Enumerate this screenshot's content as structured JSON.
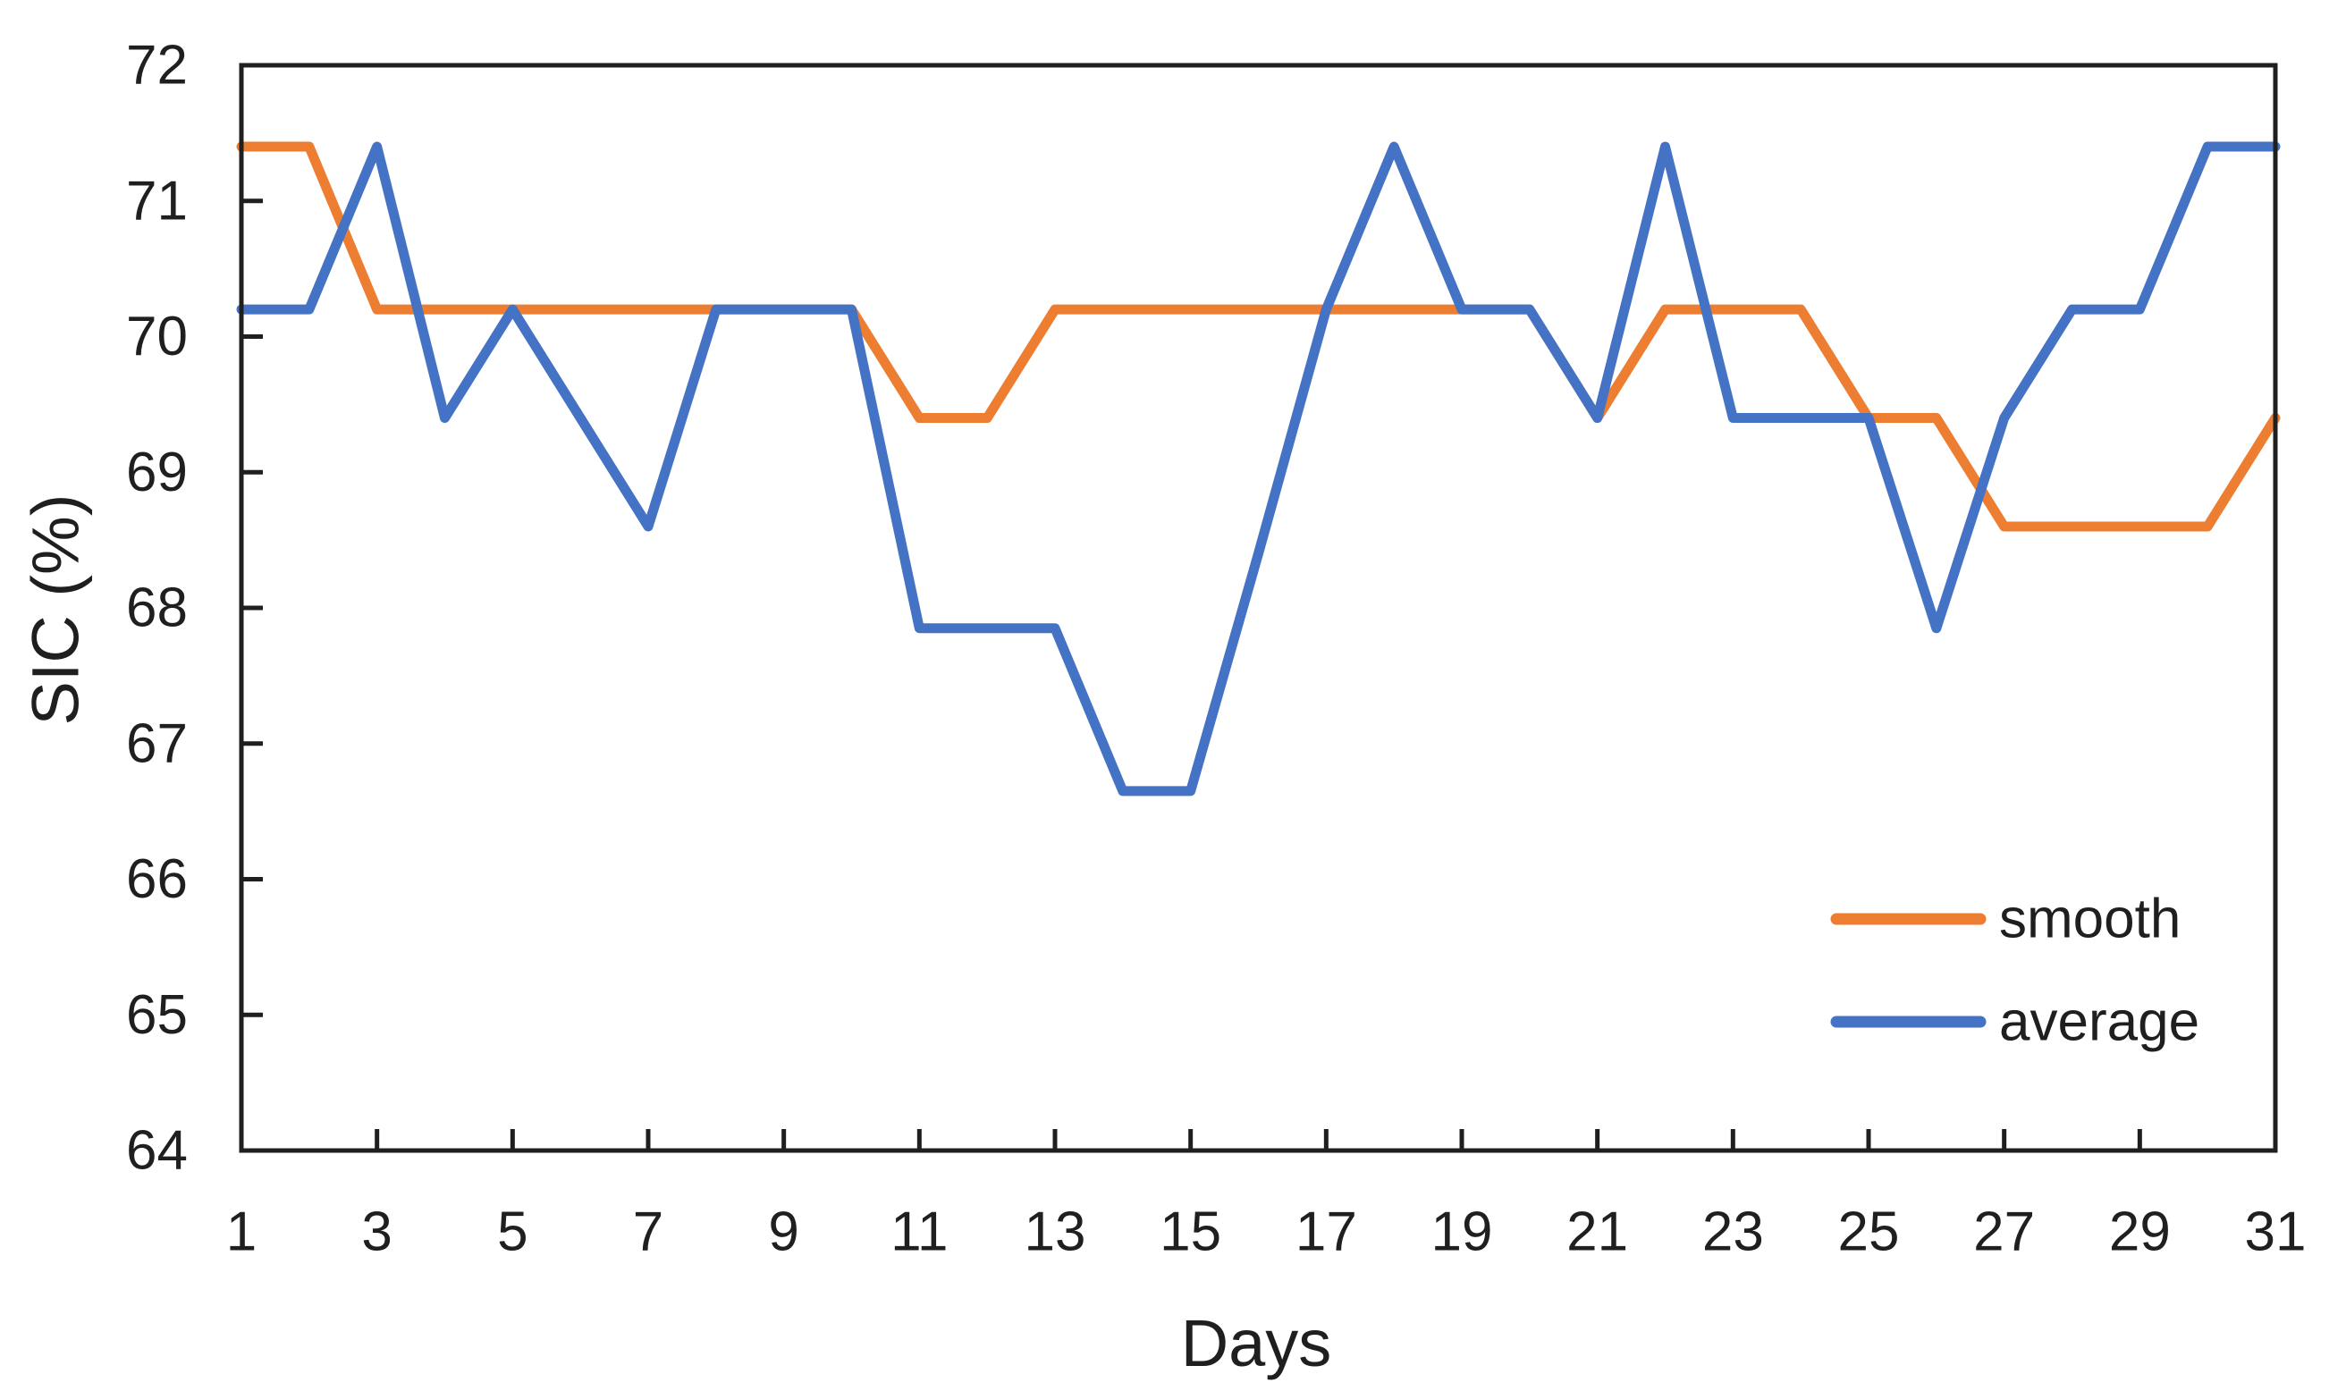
{
  "chart_data": {
    "type": "line",
    "title": "",
    "xlabel": "Days",
    "ylabel": "SIC (%)",
    "xlim": [
      1,
      31
    ],
    "ylim": [
      64,
      72
    ],
    "x_ticks": [
      1,
      3,
      5,
      7,
      9,
      11,
      13,
      15,
      17,
      19,
      21,
      23,
      25,
      27,
      29,
      31
    ],
    "y_ticks": [
      64,
      65,
      66,
      67,
      68,
      69,
      70,
      71,
      72
    ],
    "grid": false,
    "legend_position": "lower right",
    "frame": true,
    "x": [
      1,
      2,
      3,
      4,
      5,
      6,
      7,
      8,
      9,
      10,
      11,
      12,
      13,
      14,
      15,
      16,
      17,
      18,
      19,
      20,
      21,
      22,
      23,
      24,
      25,
      26,
      27,
      28,
      29,
      30,
      31
    ],
    "series": [
      {
        "name": "smooth",
        "color": "#ED7D31",
        "values": [
          71.4,
          71.4,
          70.2,
          70.2,
          70.2,
          70.2,
          70.2,
          70.2,
          70.2,
          70.2,
          69.4,
          69.4,
          70.2,
          70.2,
          70.2,
          70.2,
          70.2,
          70.2,
          70.2,
          70.2,
          69.4,
          70.2,
          70.2,
          70.2,
          69.4,
          69.4,
          68.6,
          68.6,
          68.6,
          68.6,
          69.4
        ]
      },
      {
        "name": "average",
        "color": "#4472C4",
        "values": [
          70.2,
          70.2,
          71.4,
          69.4,
          70.2,
          69.4,
          68.6,
          70.2,
          70.2,
          70.2,
          67.85,
          67.85,
          67.85,
          66.65,
          66.65,
          68.4,
          70.2,
          71.4,
          70.2,
          70.2,
          69.4,
          71.4,
          69.4,
          69.4,
          69.4,
          67.85,
          69.4,
          70.2,
          70.2,
          71.4,
          71.4
        ]
      }
    ]
  },
  "figure": {
    "x_axis_title": "Days",
    "y_axis_title": "SIC (%)",
    "legend": {
      "smooth_label": "smooth",
      "average_label": "average"
    }
  },
  "style": {
    "axis_color": "#1f1f1f",
    "background": "#ffffff"
  }
}
